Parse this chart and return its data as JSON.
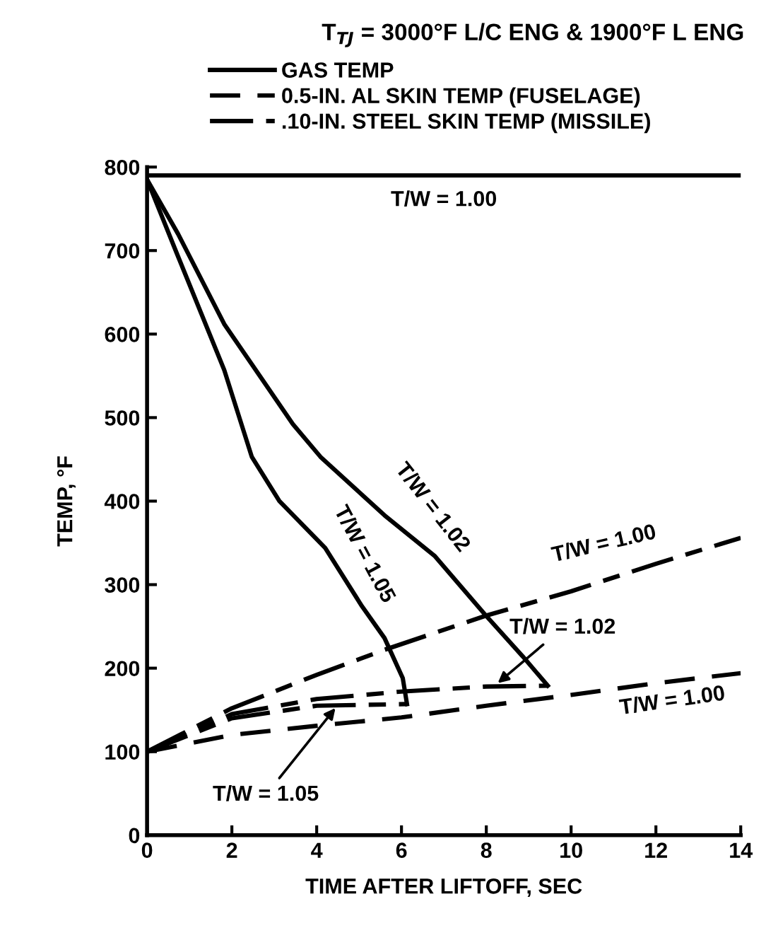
{
  "chart_data": {
    "type": "line",
    "title": "T$_{TJ}$ = 3000°F L/C ENG & 1900°F L ENG",
    "xlabel": "TIME AFTER LIFTOFF, SEC",
    "ylabel": "TEMP, °F",
    "xlim": [
      0,
      14
    ],
    "ylim": [
      0,
      800
    ],
    "xticks": [
      0,
      2,
      4,
      6,
      8,
      10,
      12,
      14
    ],
    "yticks": [
      0,
      100,
      200,
      300,
      400,
      500,
      600,
      700,
      800
    ],
    "grid": false,
    "legend": "top",
    "marker": "none",
    "series": [
      {
        "name": "GAS TEMP",
        "color": "#000000",
        "line_style": "solid",
        "x": [
          0,
          14
        ],
        "values": [
          790,
          790
        ]
      },
      {
        "color": "#000000",
        "line_style": "solid",
        "x": [
          0,
          0.73,
          1.82,
          3.44,
          4.09,
          5.6,
          6.79,
          7.99,
          8.86,
          9.45
        ],
        "values": [
          785,
          720,
          612,
          492,
          453,
          383,
          334,
          263,
          214,
          179
        ]
      },
      {
        "color": "#000000",
        "line_style": "solid",
        "x": [
          0,
          0.73,
          1.82,
          2.47,
          3.12,
          4.2,
          5.07,
          5.6,
          6.03,
          6.13
        ],
        "values": [
          785,
          693,
          557,
          453,
          400,
          344,
          274,
          236,
          188,
          157
        ]
      },
      {
        "name": "0.5-IN. AL SKIN TEMP (FUSELAGE)",
        "color": "#000000",
        "line_style": "dashed",
        "x": [
          0,
          2,
          4,
          6,
          8,
          10,
          12,
          14
        ],
        "values": [
          100,
          120,
          131,
          141,
          155,
          168,
          182,
          194
        ]
      },
      {
        "name": ".10-IN. STEEL SKIN TEMP (MISSILE)",
        "color": "#000000",
        "line_style": "dashdot",
        "x": [
          0,
          2,
          4,
          5.6,
          8,
          10,
          12,
          14
        ],
        "values": [
          100,
          152,
          192,
          222,
          263,
          292,
          325,
          356
        ]
      },
      {
        "color": "#000000",
        "line_style": "dashdot",
        "x": [
          0,
          2,
          4,
          6,
          8,
          9.45
        ],
        "values": [
          100,
          145,
          163,
          172,
          178,
          179
        ]
      },
      {
        "color": "#000000",
        "line_style": "dashdot",
        "x": [
          0,
          2,
          4,
          6.13
        ],
        "values": [
          100,
          140,
          155,
          157
        ]
      }
    ],
    "annotations": [
      "T/W = 1.00",
      "T/W = 1.02",
      "T/W = 1.05",
      "T/W = 1.00",
      {
        "text": "T/W = 1.02",
        "x": 8.2,
        "y": 179
      },
      "T/W = 1.00",
      {
        "text": "T/W = 1.05",
        "x": 4.5,
        "y": 156
      }
    ]
  }
}
